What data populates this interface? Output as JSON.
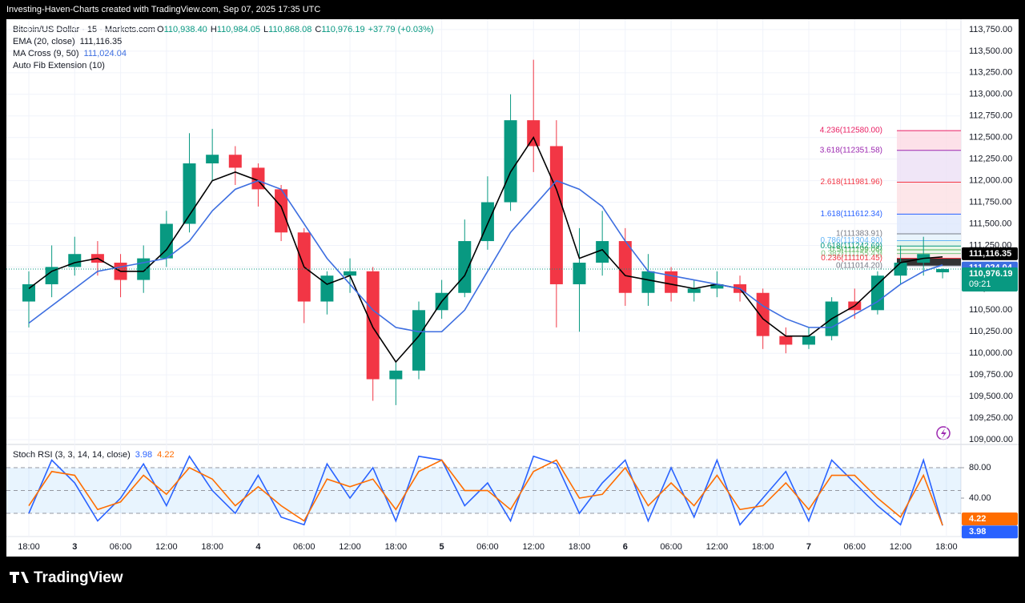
{
  "chart_data": {
    "type": "candlestick",
    "caption": "Investing-Haven-Charts created with TradingView.com, Sep 07, 2025 17:35 UTC",
    "symbol": "Bitcoin/US Dollar · 15 · Markets.com",
    "legend_ohlc": [
      {
        "key": "O",
        "label": "110,938.40"
      },
      {
        "key": "H",
        "label": "110,984.05"
      },
      {
        "key": "L",
        "label": "110,868.08"
      },
      {
        "key": "C",
        "label": "110,976.19"
      }
    ],
    "change": "+37.79 (+0.03%)",
    "fib_title": "Auto Fib Extension (10)",
    "brand": "TradingView",
    "up_color": "#089981",
    "down_color": "#f23645",
    "x": [
      0,
      3,
      6,
      9,
      12,
      15,
      18,
      21,
      24,
      27,
      30,
      33,
      36,
      39,
      42,
      45,
      48,
      51,
      54,
      57,
      60,
      63,
      66,
      69,
      72,
      75,
      78,
      81,
      84,
      87,
      90,
      93,
      96,
      99,
      102,
      105,
      108,
      111,
      114,
      117,
      119.5
    ],
    "open": [
      110600,
      110800,
      111000,
      111150,
      111050,
      110850,
      111100,
      111500,
      112200,
      112300,
      112150,
      111900,
      111400,
      110600,
      110900,
      110950,
      109700,
      109800,
      110500,
      110700,
      111300,
      111750,
      112700,
      112400,
      110800,
      111050,
      111300,
      110700,
      110950,
      110700,
      110750,
      110800,
      110700,
      110200,
      110100,
      110200,
      110600,
      110500,
      110900,
      111050,
      110938.4
    ],
    "high": [
      110950,
      111250,
      111350,
      111300,
      111150,
      111250,
      111650,
      112550,
      112600,
      112400,
      112200,
      111950,
      111450,
      110950,
      111100,
      111000,
      109900,
      110600,
      110850,
      111550,
      112050,
      113000,
      113400,
      112700,
      111450,
      111650,
      111450,
      111150,
      111000,
      110850,
      110950,
      110900,
      110750,
      110300,
      110300,
      110650,
      110750,
      110950,
      111250,
      111350,
      110984.05
    ],
    "low": [
      110300,
      110650,
      110900,
      110900,
      110650,
      110700,
      111000,
      111400,
      112000,
      111950,
      111700,
      111300,
      110350,
      110450,
      110700,
      109450,
      109400,
      109700,
      110400,
      110650,
      111200,
      111650,
      112100,
      110300,
      110250,
      110900,
      110550,
      110550,
      110600,
      110600,
      110650,
      110600,
      110050,
      110000,
      110050,
      110150,
      110400,
      110450,
      110800,
      110900,
      110868.08
    ],
    "close": [
      110800,
      111000,
      111150,
      111050,
      110850,
      111100,
      111500,
      112200,
      112300,
      112150,
      111900,
      111400,
      110600,
      110900,
      110950,
      109700,
      109800,
      110500,
      110700,
      111300,
      111750,
      112700,
      112400,
      110800,
      111050,
      111300,
      110700,
      110950,
      110700,
      110750,
      110800,
      110700,
      110200,
      110100,
      110200,
      110600,
      110500,
      110900,
      111050,
      111150,
      110976.19
    ],
    "last_label": "110,976.19",
    "countdown": "09:21",
    "series": [
      {
        "name": "EMA (20, close)",
        "color": "#000000",
        "last_label": "111,116.35",
        "values": [
          110750,
          110950,
          111050,
          111100,
          110950,
          110950,
          111200,
          111600,
          112000,
          112100,
          112000,
          111700,
          111000,
          110800,
          110900,
          110300,
          109900,
          110200,
          110600,
          110900,
          111500,
          112100,
          112500,
          111900,
          111100,
          111200,
          110900,
          110850,
          110800,
          110750,
          110800,
          110750,
          110400,
          110200,
          110200,
          110400,
          110550,
          110800,
          111050,
          111100,
          111116.35
        ]
      },
      {
        "name": "MA Cross (9, 50)",
        "color": "#3d6ee0",
        "last_label": "111,024.04",
        "values": [
          110350,
          110550,
          110750,
          110950,
          111000,
          111050,
          111100,
          111300,
          111650,
          111900,
          112000,
          111900,
          111500,
          111100,
          110800,
          110500,
          110300,
          110250,
          110250,
          110500,
          110950,
          111400,
          111700,
          112000,
          111900,
          111700,
          111300,
          110950,
          110900,
          110850,
          110800,
          110750,
          110550,
          110400,
          110300,
          110300,
          110450,
          110600,
          110800,
          110950,
          111024.04
        ]
      }
    ],
    "fib": [
      {
        "value": 112580.0,
        "label": "4.236(112580.00)",
        "color": "#e91e63"
      },
      {
        "value": 112351.58,
        "label": "3.618(112351.58)",
        "color": "#9c27b0"
      },
      {
        "value": 111981.96,
        "label": "2.618(111981.96)",
        "color": "#f23645"
      },
      {
        "value": 111612.34,
        "label": "1.618(111612.34)",
        "color": "#2962ff"
      },
      {
        "value": 111383.91,
        "label": "1(111383.91)",
        "color": "#787b86"
      },
      {
        "value": 111304.8,
        "label": "0.786(111304.80)",
        "color": "#64b5f6"
      },
      {
        "value": 111242.69,
        "label": "0.618(111242.69)",
        "color": "#089981"
      },
      {
        "value": 111199.06,
        "label": "0.5(111199.06)",
        "color": "#4caf50"
      },
      {
        "value": 111155.43,
        "label": "0.382(111155.43)",
        "color": "#81c784"
      },
      {
        "value": 111101.45,
        "label": "0.236(111101.45)",
        "color": "#f23645"
      },
      {
        "value": 111014.2,
        "label": "0(111014.20)",
        "color": "#787b86"
      }
    ],
    "fib_fills": [
      "#fcd9e3",
      "#ece0f5",
      "#fde0e3",
      "#dde7fd",
      "#e3f1fc",
      "#dff3ea",
      "#e4f5e4",
      "#e8f5e8",
      "#fde3e5"
    ],
    "xlim": [
      -2.93,
      121.9
    ],
    "xticks": [
      {
        "value": 0,
        "label": "18:00"
      },
      {
        "value": 6,
        "label": "3"
      },
      {
        "value": 12,
        "label": "06:00"
      },
      {
        "value": 18,
        "label": "12:00"
      },
      {
        "value": 24,
        "label": "18:00"
      },
      {
        "value": 30,
        "label": "4"
      },
      {
        "value": 36,
        "label": "06:00"
      },
      {
        "value": 42,
        "label": "12:00"
      },
      {
        "value": 48,
        "label": "18:00"
      },
      {
        "value": 54,
        "label": "5"
      },
      {
        "value": 60,
        "label": "06:00"
      },
      {
        "value": 66,
        "label": "12:00"
      },
      {
        "value": 72,
        "label": "18:00"
      },
      {
        "value": 78,
        "label": "6"
      },
      {
        "value": 84,
        "label": "06:00"
      },
      {
        "value": 90,
        "label": "12:00"
      },
      {
        "value": 96,
        "label": "18:00"
      },
      {
        "value": 102,
        "label": "7"
      },
      {
        "value": 108,
        "label": "06:00"
      },
      {
        "value": 114,
        "label": "12:00"
      },
      {
        "value": 120,
        "label": "18:00"
      }
    ],
    "ylim": [
      108963,
      113870
    ],
    "yticks": [
      {
        "value": 113750,
        "label": "113,750.00"
      },
      {
        "value": 113500,
        "label": "113,500.00"
      },
      {
        "value": 113250,
        "label": "113,250.00"
      },
      {
        "value": 113000,
        "label": "113,000.00"
      },
      {
        "value": 112750,
        "label": "112,750.00"
      },
      {
        "value": 112500,
        "label": "112,500.00"
      },
      {
        "value": 112250,
        "label": "112,250.00"
      },
      {
        "value": 112000,
        "label": "112,000.00"
      },
      {
        "value": 111750,
        "label": "111,750.00"
      },
      {
        "value": 111500,
        "label": "111,500.00"
      },
      {
        "value": 111250,
        "label": "111,250.00"
      },
      {
        "value": 111000,
        "label": "111,000.00"
      },
      {
        "value": 110750,
        "label": "110,750.00"
      },
      {
        "value": 110500,
        "label": "110,500.00"
      },
      {
        "value": 110250,
        "label": "110,250.00"
      },
      {
        "value": 110000,
        "label": "110,000.00"
      },
      {
        "value": 109750,
        "label": "109,750.00"
      },
      {
        "value": 109500,
        "label": "109,500.00"
      },
      {
        "value": 109250,
        "label": "109,250.00"
      },
      {
        "value": 109000,
        "label": "109,000.00"
      }
    ],
    "stoch": {
      "title": "Stoch RSI (3, 3, 14, 14, close)",
      "ylim": [
        -10.5,
        109.5
      ],
      "yticks": [
        {
          "value": 80,
          "label": "80.00"
        },
        {
          "value": 40,
          "label": "40.00"
        }
      ],
      "bands": [
        80,
        50,
        20
      ],
      "series": [
        {
          "name": "K",
          "color": "#2962ff",
          "last_label": "3.98",
          "values": [
            20,
            90,
            60,
            10,
            40,
            85,
            30,
            95,
            50,
            20,
            70,
            15,
            5,
            85,
            40,
            80,
            10,
            95,
            90,
            30,
            60,
            10,
            95,
            85,
            20,
            60,
            90,
            10,
            80,
            15,
            90,
            5,
            40,
            75,
            10,
            90,
            60,
            30,
            5,
            90,
            3.98
          ]
        },
        {
          "name": "D",
          "color": "#ff6d00",
          "last_label": "4.22",
          "values": [
            30,
            75,
            70,
            25,
            35,
            70,
            45,
            80,
            65,
            30,
            55,
            30,
            10,
            65,
            55,
            65,
            25,
            75,
            90,
            50,
            50,
            25,
            75,
            90,
            40,
            45,
            80,
            30,
            60,
            30,
            70,
            25,
            30,
            60,
            25,
            70,
            70,
            40,
            15,
            70,
            4.22
          ]
        }
      ]
    }
  }
}
